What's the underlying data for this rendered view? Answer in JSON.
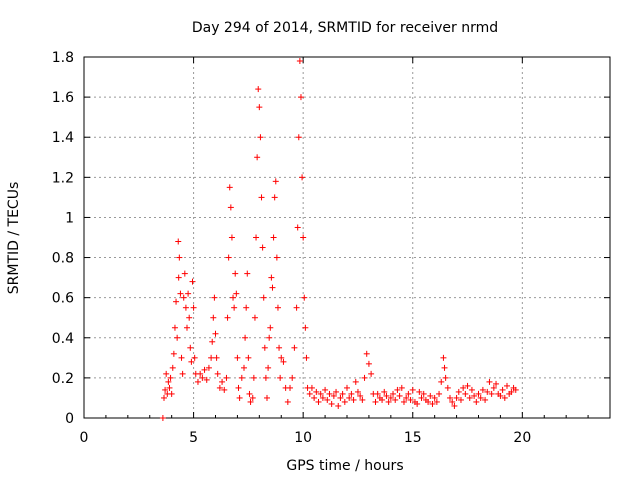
{
  "chart_data": {
    "type": "scatter",
    "title": "Day 294 of 2014, SRMTID for receiver nrmd",
    "xlabel": "GPS time / hours",
    "ylabel": "SRMTID / TECUs",
    "xlim": [
      0,
      24
    ],
    "ylim": [
      0,
      1.8
    ],
    "x_ticks": [
      0,
      5,
      10,
      15,
      20
    ],
    "y_ticks": [
      0,
      0.2,
      0.4,
      0.6,
      0.8,
      1,
      1.2,
      1.4,
      1.6,
      1.8
    ],
    "grid": true,
    "marker": "+",
    "series": [
      {
        "name": "SRMTID",
        "color": "#ff0000",
        "points": [
          [
            3.6,
            0.0
          ],
          [
            3.65,
            0.1
          ],
          [
            3.7,
            0.14
          ],
          [
            3.75,
            0.22
          ],
          [
            3.8,
            0.12
          ],
          [
            3.85,
            0.18
          ],
          [
            3.9,
            0.15
          ],
          [
            3.95,
            0.2
          ],
          [
            4.0,
            0.12
          ],
          [
            4.05,
            0.25
          ],
          [
            4.1,
            0.32
          ],
          [
            4.15,
            0.45
          ],
          [
            4.2,
            0.58
          ],
          [
            4.25,
            0.4
          ],
          [
            4.3,
            0.88
          ],
          [
            4.32,
            0.7
          ],
          [
            4.35,
            0.8
          ],
          [
            4.4,
            0.62
          ],
          [
            4.45,
            0.3
          ],
          [
            4.5,
            0.22
          ],
          [
            4.55,
            0.6
          ],
          [
            4.6,
            0.72
          ],
          [
            4.65,
            0.55
          ],
          [
            4.7,
            0.45
          ],
          [
            4.75,
            0.62
          ],
          [
            4.8,
            0.5
          ],
          [
            4.85,
            0.35
          ],
          [
            4.9,
            0.28
          ],
          [
            4.95,
            0.68
          ],
          [
            5.0,
            0.55
          ],
          [
            5.05,
            0.3
          ],
          [
            5.1,
            0.22
          ],
          [
            5.2,
            0.18
          ],
          [
            5.3,
            0.22
          ],
          [
            5.4,
            0.2
          ],
          [
            5.5,
            0.24
          ],
          [
            5.6,
            0.19
          ],
          [
            5.7,
            0.25
          ],
          [
            5.8,
            0.3
          ],
          [
            5.85,
            0.38
          ],
          [
            5.9,
            0.5
          ],
          [
            5.95,
            0.6
          ],
          [
            6.0,
            0.42
          ],
          [
            6.05,
            0.3
          ],
          [
            6.1,
            0.22
          ],
          [
            6.2,
            0.15
          ],
          [
            6.3,
            0.18
          ],
          [
            6.4,
            0.14
          ],
          [
            6.5,
            0.2
          ],
          [
            6.55,
            0.5
          ],
          [
            6.6,
            0.8
          ],
          [
            6.65,
            1.15
          ],
          [
            6.7,
            1.05
          ],
          [
            6.75,
            0.9
          ],
          [
            6.8,
            0.6
          ],
          [
            6.85,
            0.55
          ],
          [
            6.9,
            0.72
          ],
          [
            6.95,
            0.62
          ],
          [
            7.0,
            0.3
          ],
          [
            7.05,
            0.15
          ],
          [
            7.1,
            0.1
          ],
          [
            7.2,
            0.2
          ],
          [
            7.3,
            0.25
          ],
          [
            7.35,
            0.4
          ],
          [
            7.4,
            0.55
          ],
          [
            7.45,
            0.72
          ],
          [
            7.5,
            0.3
          ],
          [
            7.55,
            0.12
          ],
          [
            7.6,
            0.08
          ],
          [
            7.7,
            0.1
          ],
          [
            7.75,
            0.2
          ],
          [
            7.8,
            0.5
          ],
          [
            7.85,
            0.9
          ],
          [
            7.9,
            1.3
          ],
          [
            7.95,
            1.64
          ],
          [
            8.0,
            1.55
          ],
          [
            8.05,
            1.4
          ],
          [
            8.1,
            1.1
          ],
          [
            8.15,
            0.85
          ],
          [
            8.2,
            0.6
          ],
          [
            8.25,
            0.35
          ],
          [
            8.3,
            0.2
          ],
          [
            8.35,
            0.1
          ],
          [
            8.4,
            0.25
          ],
          [
            8.45,
            0.4
          ],
          [
            8.5,
            0.45
          ],
          [
            8.55,
            0.7
          ],
          [
            8.6,
            0.65
          ],
          [
            8.65,
            0.9
          ],
          [
            8.7,
            1.1
          ],
          [
            8.75,
            1.18
          ],
          [
            8.8,
            0.8
          ],
          [
            8.85,
            0.55
          ],
          [
            8.9,
            0.35
          ],
          [
            8.95,
            0.2
          ],
          [
            9.0,
            0.3
          ],
          [
            9.1,
            0.28
          ],
          [
            9.2,
            0.15
          ],
          [
            9.3,
            0.08
          ],
          [
            9.4,
            0.15
          ],
          [
            9.5,
            0.2
          ],
          [
            9.6,
            0.35
          ],
          [
            9.7,
            0.55
          ],
          [
            9.75,
            0.95
          ],
          [
            9.8,
            1.4
          ],
          [
            9.85,
            1.78
          ],
          [
            9.9,
            1.6
          ],
          [
            9.95,
            1.2
          ],
          [
            10.0,
            0.9
          ],
          [
            10.05,
            0.6
          ],
          [
            10.1,
            0.45
          ],
          [
            10.15,
            0.3
          ],
          [
            10.2,
            0.15
          ],
          [
            10.3,
            0.12
          ],
          [
            10.4,
            0.15
          ],
          [
            10.5,
            0.1
          ],
          [
            10.6,
            0.13
          ],
          [
            10.7,
            0.08
          ],
          [
            10.8,
            0.12
          ],
          [
            10.9,
            0.1
          ],
          [
            11.0,
            0.14
          ],
          [
            11.1,
            0.09
          ],
          [
            11.2,
            0.12
          ],
          [
            11.3,
            0.07
          ],
          [
            11.4,
            0.11
          ],
          [
            11.5,
            0.13
          ],
          [
            11.6,
            0.06
          ],
          [
            11.7,
            0.1
          ],
          [
            11.8,
            0.12
          ],
          [
            11.9,
            0.08
          ],
          [
            12.0,
            0.15
          ],
          [
            12.1,
            0.1
          ],
          [
            12.2,
            0.12
          ],
          [
            12.3,
            0.09
          ],
          [
            12.4,
            0.18
          ],
          [
            12.5,
            0.13
          ],
          [
            12.6,
            0.11
          ],
          [
            12.7,
            0.09
          ],
          [
            12.8,
            0.2
          ],
          [
            12.9,
            0.32
          ],
          [
            13.0,
            0.27
          ],
          [
            13.1,
            0.22
          ],
          [
            13.2,
            0.12
          ],
          [
            13.3,
            0.08
          ],
          [
            13.4,
            0.12
          ],
          [
            13.5,
            0.1
          ],
          [
            13.6,
            0.09
          ],
          [
            13.7,
            0.13
          ],
          [
            13.8,
            0.11
          ],
          [
            13.9,
            0.08
          ],
          [
            14.0,
            0.1
          ],
          [
            14.1,
            0.12
          ],
          [
            14.2,
            0.09
          ],
          [
            14.3,
            0.14
          ],
          [
            14.4,
            0.11
          ],
          [
            14.5,
            0.15
          ],
          [
            14.6,
            0.08
          ],
          [
            14.7,
            0.1
          ],
          [
            14.8,
            0.12
          ],
          [
            14.9,
            0.09
          ],
          [
            15.0,
            0.14
          ],
          [
            15.1,
            0.08
          ],
          [
            15.2,
            0.07
          ],
          [
            15.3,
            0.13
          ],
          [
            15.4,
            0.1
          ],
          [
            15.5,
            0.12
          ],
          [
            15.6,
            0.09
          ],
          [
            15.7,
            0.08
          ],
          [
            15.8,
            0.11
          ],
          [
            15.9,
            0.07
          ],
          [
            16.0,
            0.1
          ],
          [
            16.1,
            0.08
          ],
          [
            16.2,
            0.12
          ],
          [
            16.3,
            0.18
          ],
          [
            16.4,
            0.3
          ],
          [
            16.45,
            0.25
          ],
          [
            16.5,
            0.2
          ],
          [
            16.6,
            0.15
          ],
          [
            16.7,
            0.1
          ],
          [
            16.8,
            0.08
          ],
          [
            16.9,
            0.06
          ],
          [
            17.0,
            0.1
          ],
          [
            17.1,
            0.13
          ],
          [
            17.2,
            0.09
          ],
          [
            17.3,
            0.15
          ],
          [
            17.4,
            0.12
          ],
          [
            17.5,
            0.16
          ],
          [
            17.6,
            0.1
          ],
          [
            17.7,
            0.14
          ],
          [
            17.8,
            0.11
          ],
          [
            17.9,
            0.08
          ],
          [
            18.0,
            0.12
          ],
          [
            18.1,
            0.1
          ],
          [
            18.2,
            0.14
          ],
          [
            18.3,
            0.09
          ],
          [
            18.4,
            0.13
          ],
          [
            18.5,
            0.18
          ],
          [
            18.6,
            0.12
          ],
          [
            18.7,
            0.15
          ],
          [
            18.8,
            0.17
          ],
          [
            18.9,
            0.12
          ],
          [
            19.0,
            0.11
          ],
          [
            19.1,
            0.14
          ],
          [
            19.2,
            0.1
          ],
          [
            19.3,
            0.16
          ],
          [
            19.4,
            0.12
          ],
          [
            19.5,
            0.13
          ],
          [
            19.6,
            0.15
          ],
          [
            19.7,
            0.14
          ]
        ]
      }
    ]
  }
}
